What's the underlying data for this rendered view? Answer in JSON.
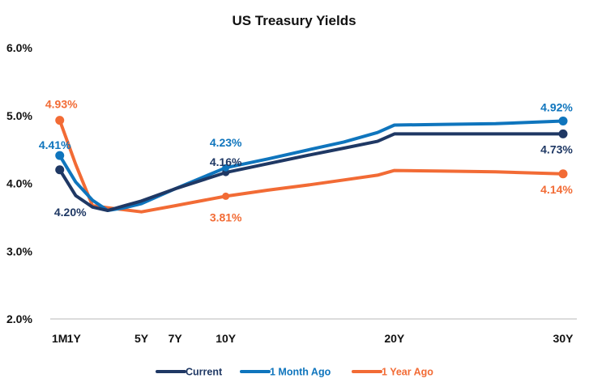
{
  "chart_data": {
    "type": "line",
    "title": "US Treasury Yields",
    "xlabel": "",
    "ylabel": "",
    "ylim": [
      2.0,
      6.0
    ],
    "yticks": [
      "2.0%",
      "3.0%",
      "4.0%",
      "5.0%",
      "6.0%"
    ],
    "ytick_values": [
      2.0,
      3.0,
      4.0,
      5.0,
      6.0
    ],
    "x_scale": "maturity in years (linear)",
    "xlim_years": [
      0,
      30
    ],
    "xticks": [
      {
        "label": "1M",
        "years": 0.083
      },
      {
        "label": "1Y",
        "years": 1
      },
      {
        "label": "5Y",
        "years": 5
      },
      {
        "label": "7Y",
        "years": 7
      },
      {
        "label": "10Y",
        "years": 10
      },
      {
        "label": "20Y",
        "years": 20
      },
      {
        "label": "30Y",
        "years": 30
      }
    ],
    "grid": false,
    "legend_position": "bottom",
    "x_years": [
      0.083,
      1.1,
      2.1,
      3.0,
      4.0,
      5.0,
      7.0,
      10.0,
      12.5,
      15.0,
      17.0,
      19.0,
      20.0,
      23.0,
      26.0,
      30.0
    ],
    "series": [
      {
        "name": "Current",
        "color": "#1F3864",
        "values": [
          4.2,
          3.82,
          3.65,
          3.6,
          3.67,
          3.74,
          3.92,
          4.16,
          4.29,
          4.42,
          4.52,
          4.62,
          4.73,
          4.73,
          4.73,
          4.73
        ],
        "labeled_points": [
          {
            "years": 0.083,
            "value": 4.2,
            "label": "4.20%",
            "position": "below"
          },
          {
            "years": 10.0,
            "value": 4.16,
            "label": "4.16%",
            "position": "above"
          },
          {
            "years": 30.0,
            "value": 4.73,
            "label": "4.73%",
            "position": "below"
          }
        ]
      },
      {
        "name": "1 Month Ago",
        "color": "#0F75BD",
        "values": [
          4.41,
          4.02,
          3.75,
          3.6,
          3.64,
          3.7,
          3.92,
          4.23,
          4.36,
          4.5,
          4.61,
          4.75,
          4.86,
          4.87,
          4.88,
          4.92
        ],
        "labeled_points": [
          {
            "years": 0.083,
            "value": 4.41,
            "label": "4.41%",
            "position": "above"
          },
          {
            "years": 10.0,
            "value": 4.23,
            "label": "4.23%",
            "position": "above"
          },
          {
            "years": 30.0,
            "value": 4.92,
            "label": "4.92%",
            "position": "above"
          }
        ]
      },
      {
        "name": "1 Year Ago",
        "color": "#F26B35",
        "values": [
          4.93,
          4.28,
          3.67,
          3.64,
          3.61,
          3.58,
          3.67,
          3.81,
          3.9,
          3.98,
          4.05,
          4.12,
          4.19,
          4.18,
          4.17,
          4.14
        ],
        "labeled_points": [
          {
            "years": 0.083,
            "value": 4.93,
            "label": "4.93%",
            "position": "above"
          },
          {
            "years": 10.0,
            "value": 3.81,
            "label": "3.81%",
            "position": "below"
          },
          {
            "years": 30.0,
            "value": 4.14,
            "label": "4.14%",
            "position": "below"
          }
        ]
      }
    ]
  }
}
